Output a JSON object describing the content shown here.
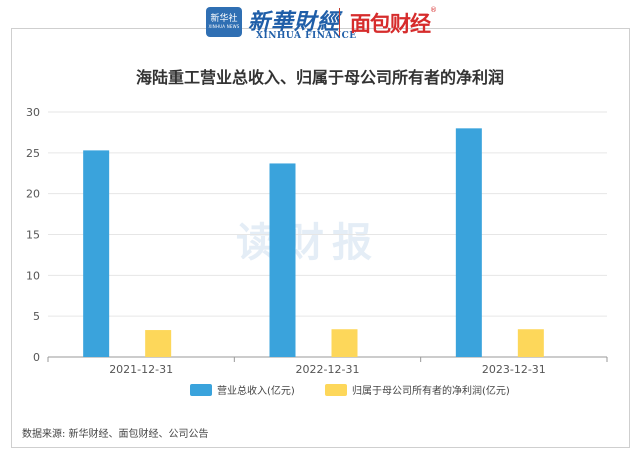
{
  "header": {
    "logo_badge": "新华社",
    "logo_badge_sub": "XINHUA NEWS",
    "xinhua_cn": "新華財經",
    "xinhua_en": "XINHUA FINANCE",
    "partner_logo": "面包财经",
    "partner_reg": "®"
  },
  "watermark": "读财报",
  "source": "数据来源: 新华财经、面包财经、公司公告",
  "chart_data": {
    "type": "bar",
    "title": "海陆重工营业总收入、归属于母公司所有者的净利润",
    "categories": [
      "2021-12-31",
      "2022-12-31",
      "2023-12-31"
    ],
    "series": [
      {
        "name": "营业总收入(亿元)",
        "color": "#3aa3dc",
        "values": [
          25.3,
          23.7,
          28.0
        ]
      },
      {
        "name": "归属于母公司所有者的净利润(亿元)",
        "color": "#fdd75a",
        "values": [
          3.3,
          3.4,
          3.4
        ]
      }
    ],
    "ylim": [
      0,
      30
    ],
    "yticks": [
      "0",
      "5",
      "10",
      "15",
      "20",
      "25",
      "30"
    ],
    "grid": true,
    "legend": "bottom"
  }
}
